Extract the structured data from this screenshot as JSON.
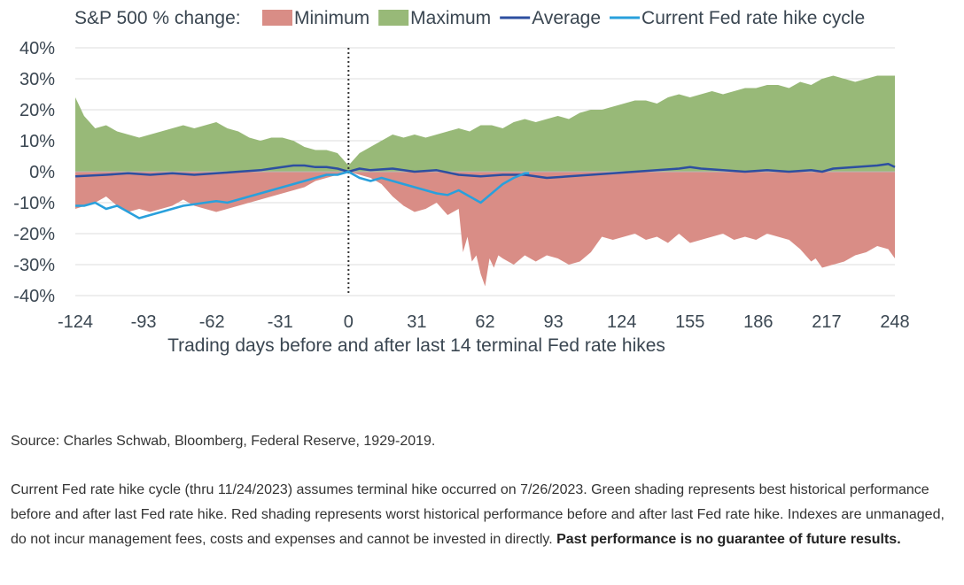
{
  "chart_data": {
    "type": "area",
    "legend_title": "S&P 500 % change:",
    "legend_placement": "top",
    "xlabel": "Trading days before and after last 14 terminal Fed rate hikes",
    "ylabel": "",
    "x_ticks": [
      -124,
      -93,
      -62,
      -31,
      0,
      31,
      62,
      93,
      124,
      155,
      186,
      217,
      248
    ],
    "y_ticks": [
      "40%",
      "30%",
      "20%",
      "10%",
      "0%",
      "-10%",
      "-20%",
      "-30%",
      "-40%"
    ],
    "xlim": [
      -124,
      248
    ],
    "ylim": [
      -40,
      40
    ],
    "grid": "horizontal",
    "vertical_marker_x": 0,
    "series": [
      {
        "name": "Minimum",
        "kind": "area",
        "color": "#d98d86",
        "x": [
          -124,
          -115,
          -110,
          -105,
          -100,
          -95,
          -90,
          -85,
          -80,
          -75,
          -70,
          -65,
          -60,
          -55,
          -50,
          -45,
          -40,
          -35,
          -30,
          -25,
          -20,
          -15,
          -10,
          -5,
          0,
          5,
          10,
          15,
          20,
          25,
          30,
          35,
          40,
          45,
          50,
          52,
          54,
          56,
          58,
          60,
          62,
          64,
          66,
          68,
          70,
          75,
          80,
          85,
          90,
          95,
          100,
          105,
          110,
          115,
          120,
          125,
          130,
          135,
          140,
          145,
          150,
          155,
          160,
          165,
          170,
          175,
          180,
          185,
          190,
          195,
          200,
          205,
          210,
          212,
          215,
          220,
          225,
          230,
          235,
          240,
          245,
          248
        ],
        "values": [
          -12,
          -10,
          -8,
          -11,
          -13,
          -12,
          -13,
          -12,
          -11,
          -9,
          -11,
          -12,
          -13,
          -12,
          -11,
          -10,
          -9,
          -8,
          -7,
          -6,
          -5,
          -3,
          -2,
          -1,
          0,
          -1,
          -2,
          -4,
          -8,
          -11,
          -13,
          -12,
          -10,
          -14,
          -12,
          -26,
          -21,
          -29,
          -27,
          -33,
          -37,
          -28,
          -31,
          -27,
          -28,
          -30,
          -27,
          -29,
          -27,
          -28,
          -30,
          -29,
          -26,
          -21,
          -22,
          -21,
          -20,
          -22,
          -21,
          -23,
          -20,
          -23,
          -22,
          -21,
          -20,
          -22,
          -21,
          -22,
          -20,
          -21,
          -22,
          -25,
          -29,
          -28,
          -31,
          -30,
          -29,
          -27,
          -26,
          -24,
          -25,
          -28
        ]
      },
      {
        "name": "Maximum",
        "kind": "area",
        "color": "#98b978",
        "x": [
          -124,
          -120,
          -115,
          -110,
          -105,
          -100,
          -95,
          -90,
          -85,
          -80,
          -75,
          -70,
          -65,
          -60,
          -55,
          -50,
          -45,
          -40,
          -35,
          -30,
          -25,
          -20,
          -15,
          -10,
          -5,
          0,
          5,
          10,
          15,
          20,
          25,
          30,
          35,
          40,
          45,
          50,
          55,
          60,
          65,
          70,
          75,
          80,
          85,
          90,
          95,
          100,
          105,
          110,
          115,
          120,
          125,
          130,
          135,
          140,
          145,
          150,
          155,
          160,
          165,
          170,
          175,
          180,
          185,
          190,
          195,
          200,
          205,
          210,
          215,
          220,
          225,
          230,
          235,
          240,
          245,
          248
        ],
        "values": [
          24,
          18,
          14,
          15,
          13,
          12,
          11,
          12,
          13,
          14,
          15,
          14,
          15,
          16,
          14,
          13,
          11,
          10,
          11,
          11,
          10,
          8,
          7,
          7,
          6,
          2,
          6,
          8,
          10,
          12,
          11,
          12,
          11,
          12,
          13,
          14,
          13,
          15,
          15,
          14,
          16,
          17,
          16,
          17,
          18,
          17,
          19,
          20,
          20,
          21,
          22,
          23,
          23,
          22,
          24,
          25,
          24,
          25,
          26,
          25,
          26,
          27,
          27,
          28,
          28,
          27,
          29,
          28,
          30,
          31,
          30,
          29,
          30,
          31,
          31,
          31
        ]
      },
      {
        "name": "Average",
        "kind": "line",
        "color": "#2d4fa0",
        "x": [
          -124,
          -110,
          -100,
          -90,
          -80,
          -70,
          -60,
          -50,
          -40,
          -35,
          -30,
          -25,
          -20,
          -15,
          -10,
          -5,
          0,
          5,
          10,
          20,
          30,
          40,
          50,
          60,
          70,
          80,
          90,
          100,
          110,
          120,
          130,
          140,
          150,
          155,
          160,
          170,
          180,
          190,
          200,
          210,
          215,
          220,
          230,
          240,
          245,
          248
        ],
        "values": [
          -1.5,
          -1,
          -0.5,
          -1,
          -0.5,
          -1,
          -0.5,
          0,
          0.5,
          1,
          1.5,
          2,
          2,
          1.5,
          1.5,
          1,
          0,
          1,
          0.5,
          1,
          0,
          0.5,
          -1,
          -1.5,
          -1,
          -1,
          -2,
          -1.5,
          -1,
          -0.5,
          0,
          0.5,
          1,
          1.5,
          1,
          0.5,
          0,
          0.5,
          0,
          0.5,
          0,
          1,
          1.5,
          2,
          2.5,
          1.5
        ]
      },
      {
        "name": "Current Fed rate hike cycle",
        "kind": "line",
        "color": "#29a0dc",
        "x": [
          -124,
          -120,
          -115,
          -110,
          -105,
          -100,
          -95,
          -90,
          -85,
          -80,
          -75,
          -70,
          -65,
          -60,
          -55,
          -50,
          -45,
          -40,
          -35,
          -30,
          -25,
          -20,
          -15,
          -10,
          -5,
          0,
          5,
          10,
          15,
          20,
          25,
          30,
          35,
          40,
          45,
          50,
          55,
          60,
          65,
          70,
          75,
          80,
          82
        ],
        "values": [
          -11,
          -11,
          -10,
          -12,
          -11,
          -13,
          -15,
          -14,
          -13,
          -12,
          -11,
          -10.5,
          -10,
          -9.5,
          -10,
          -9,
          -8,
          -7,
          -6,
          -5,
          -4,
          -3,
          -2,
          -1,
          -1,
          0,
          -2,
          -3,
          -2,
          -3,
          -4,
          -5,
          -6,
          -7,
          -7.5,
          -6,
          -8,
          -10,
          -7,
          -4,
          -2,
          -0.5,
          -0.5
        ]
      }
    ]
  },
  "source": "Source: Charles Schwab, Bloomberg, Federal Reserve, 1929-2019.",
  "notes": {
    "text": "Current Fed rate hike cycle (thru 11/24/2023) assumes terminal hike occurred on 7/26/2023. Green shading represents best historical performance before and after last Fed rate hike. Red shading represents worst historical performance before and after last Fed rate hike. Indexes are unmanaged, do not incur management fees, costs and expenses and cannot be invested in directly.",
    "bold": "Past performance is no guarantee of future results."
  }
}
